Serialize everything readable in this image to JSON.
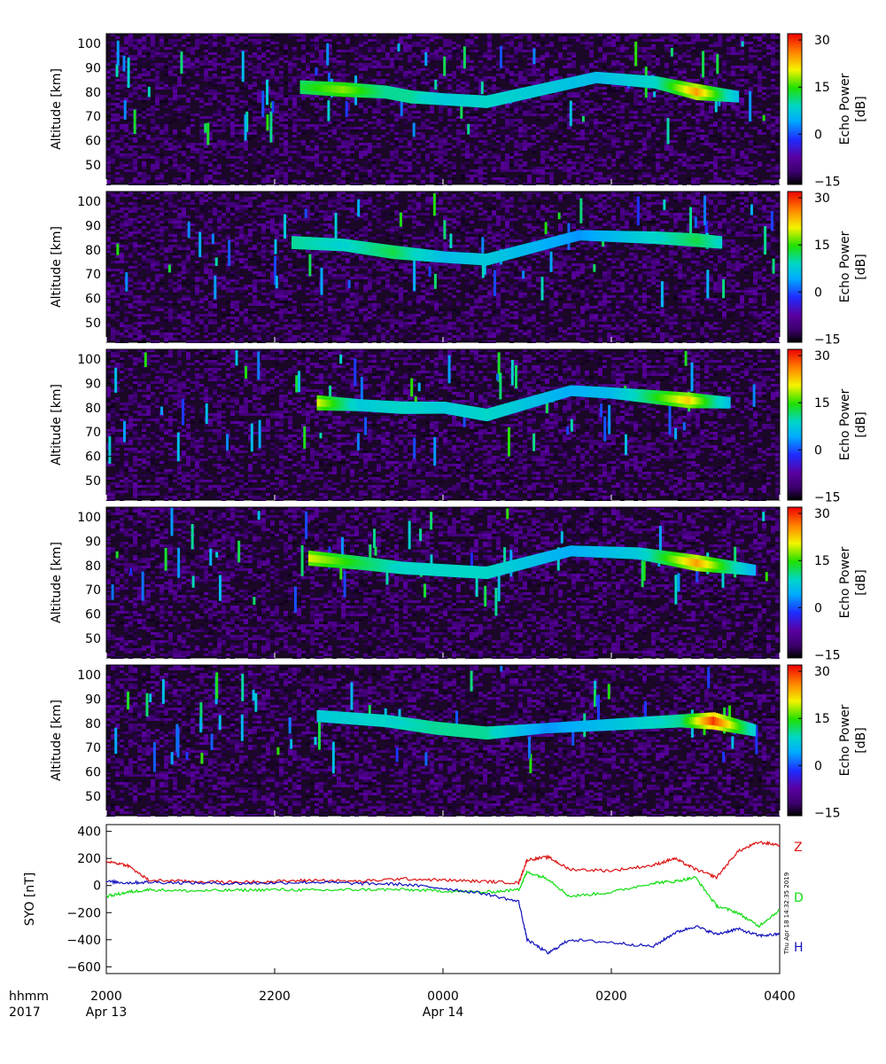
{
  "chart_data": [
    {
      "type": "heatmap",
      "ylabel": "Altitude [km]",
      "ylim": [
        42,
        104
      ],
      "yticks": [
        "50",
        "60",
        "70",
        "80",
        "90",
        "100"
      ],
      "xlim_hours": [
        20,
        28
      ],
      "colorbar": {
        "label": "Echo Power [dB]",
        "range": [
          -16,
          32
        ],
        "ticks": [
          "30",
          "15",
          "0",
          "−15"
        ]
      },
      "echo_layer": [
        {
          "x": 22.3,
          "y": 82,
          "i": 0.6
        },
        {
          "x": 22.8,
          "y": 81,
          "i": 0.7
        },
        {
          "x": 23.3,
          "y": 80,
          "i": 0.55
        },
        {
          "x": 23.6,
          "y": 78,
          "i": 0.55
        },
        {
          "x": 24.0,
          "y": 77,
          "i": 0.45
        },
        {
          "x": 24.5,
          "y": 76,
          "i": 0.5
        },
        {
          "x": 25.8,
          "y": 86,
          "i": 0.4
        },
        {
          "x": 26.5,
          "y": 84,
          "i": 0.5
        },
        {
          "x": 27.0,
          "y": 80,
          "i": 0.85
        },
        {
          "x": 27.5,
          "y": 78,
          "i": 0.4
        }
      ]
    },
    {
      "type": "heatmap",
      "ylabel": "Altitude [km]",
      "ylim": [
        42,
        104
      ],
      "yticks": [
        "50",
        "60",
        "70",
        "80",
        "90",
        "100"
      ],
      "xlim_hours": [
        20,
        28
      ],
      "colorbar": {
        "label": "Echo Power [dB]",
        "range": [
          -16,
          32
        ],
        "ticks": [
          "30",
          "15",
          "0",
          "−15"
        ]
      },
      "echo_layer": [
        {
          "x": 22.2,
          "y": 83,
          "i": 0.55
        },
        {
          "x": 22.8,
          "y": 82,
          "i": 0.5
        },
        {
          "x": 23.4,
          "y": 79,
          "i": 0.6
        },
        {
          "x": 24.0,
          "y": 77,
          "i": 0.4
        },
        {
          "x": 24.5,
          "y": 76,
          "i": 0.45
        },
        {
          "x": 25.6,
          "y": 86,
          "i": 0.3
        },
        {
          "x": 26.5,
          "y": 85,
          "i": 0.5
        },
        {
          "x": 27.0,
          "y": 84,
          "i": 0.6
        },
        {
          "x": 27.3,
          "y": 83,
          "i": 0.5
        }
      ]
    },
    {
      "type": "heatmap",
      "ylabel": "Altitude [km]",
      "ylim": [
        42,
        104
      ],
      "yticks": [
        "50",
        "60",
        "70",
        "80",
        "90",
        "100"
      ],
      "xlim_hours": [
        20,
        28
      ],
      "colorbar": {
        "label": "Echo Power [dB]",
        "range": [
          -16,
          32
        ],
        "ticks": [
          "30",
          "15",
          "0",
          "−15"
        ]
      },
      "echo_layer": [
        {
          "x": 22.5,
          "y": 82,
          "i": 0.75
        },
        {
          "x": 23.0,
          "y": 81,
          "i": 0.45
        },
        {
          "x": 23.5,
          "y": 80,
          "i": 0.5
        },
        {
          "x": 24.0,
          "y": 80,
          "i": 0.45
        },
        {
          "x": 24.5,
          "y": 77,
          "i": 0.5
        },
        {
          "x": 25.5,
          "y": 87,
          "i": 0.35
        },
        {
          "x": 26.0,
          "y": 86,
          "i": 0.4
        },
        {
          "x": 26.9,
          "y": 83,
          "i": 0.8
        },
        {
          "x": 27.4,
          "y": 82,
          "i": 0.4
        }
      ]
    },
    {
      "type": "heatmap",
      "ylabel": "Altitude [km]",
      "ylim": [
        42,
        104
      ],
      "yticks": [
        "50",
        "60",
        "70",
        "80",
        "90",
        "100"
      ],
      "xlim_hours": [
        20,
        28
      ],
      "colorbar": {
        "label": "Echo Power [dB]",
        "range": [
          -16,
          32
        ],
        "ticks": [
          "30",
          "15",
          "0",
          "−15"
        ]
      },
      "echo_layer": [
        {
          "x": 22.4,
          "y": 83,
          "i": 0.75
        },
        {
          "x": 23.0,
          "y": 81,
          "i": 0.6
        },
        {
          "x": 23.5,
          "y": 79,
          "i": 0.5
        },
        {
          "x": 24.5,
          "y": 77,
          "i": 0.5
        },
        {
          "x": 25.5,
          "y": 86,
          "i": 0.35
        },
        {
          "x": 26.3,
          "y": 85,
          "i": 0.45
        },
        {
          "x": 27.0,
          "y": 81,
          "i": 0.85
        },
        {
          "x": 27.7,
          "y": 78,
          "i": 0.35
        }
      ]
    },
    {
      "type": "heatmap",
      "ylabel": "Altitude [km]",
      "ylim": [
        42,
        104
      ],
      "yticks": [
        "50",
        "60",
        "70",
        "80",
        "90",
        "100"
      ],
      "xlim_hours": [
        20,
        28
      ],
      "colorbar": {
        "label": "Echo Power [dB]",
        "range": [
          -16,
          32
        ],
        "ticks": [
          "30",
          "15",
          "0",
          "−15"
        ]
      },
      "echo_layer": [
        {
          "x": 22.5,
          "y": 83,
          "i": 0.45
        },
        {
          "x": 23.3,
          "y": 81,
          "i": 0.5
        },
        {
          "x": 23.9,
          "y": 78,
          "i": 0.55
        },
        {
          "x": 24.5,
          "y": 76,
          "i": 0.55
        },
        {
          "x": 25.2,
          "y": 78,
          "i": 0.3
        },
        {
          "x": 26.8,
          "y": 81,
          "i": 0.55
        },
        {
          "x": 27.2,
          "y": 81,
          "i": 0.95
        },
        {
          "x": 27.7,
          "y": 77,
          "i": 0.45
        }
      ]
    },
    {
      "type": "line",
      "ylabel": "SYO [nT]",
      "ylim": [
        -650,
        450
      ],
      "yticks": [
        "400",
        "200",
        "0",
        "−200",
        "−400",
        "−600"
      ],
      "x": [
        20.0,
        20.25,
        20.5,
        21.0,
        21.5,
        22.0,
        22.5,
        23.0,
        23.5,
        24.0,
        24.5,
        24.9,
        25.0,
        25.25,
        25.5,
        26.0,
        26.5,
        26.75,
        27.0,
        27.25,
        27.5,
        27.75,
        28.0
      ],
      "series": [
        {
          "name": "Z",
          "color": "#dd1111",
          "values": [
            180,
            150,
            40,
            30,
            25,
            30,
            40,
            30,
            50,
            40,
            30,
            20,
            190,
            210,
            120,
            110,
            150,
            200,
            120,
            60,
            250,
            320,
            300
          ]
        },
        {
          "name": "D",
          "color": "#11dd11",
          "values": [
            -80,
            -50,
            -30,
            -40,
            -35,
            -30,
            -35,
            -30,
            -30,
            -40,
            -50,
            -30,
            100,
            50,
            -80,
            -50,
            20,
            30,
            60,
            -150,
            -200,
            -300,
            -180
          ]
        },
        {
          "name": "H",
          "color": "#1111bb",
          "values": [
            30,
            20,
            25,
            20,
            15,
            20,
            25,
            15,
            10,
            -20,
            -60,
            -120,
            -400,
            -500,
            -400,
            -420,
            -450,
            -350,
            -300,
            -360,
            -320,
            -370,
            -360
          ]
        }
      ]
    }
  ],
  "x_axis": {
    "ticks": [
      "2000",
      "2200",
      "0000",
      "0200",
      "0400"
    ],
    "dates": [
      "Apr 13",
      "Apr 14"
    ],
    "corner_top": "hhmm",
    "corner_bottom": "2017"
  },
  "timestamp": "Thu Apr 18 14:32:35 2019"
}
